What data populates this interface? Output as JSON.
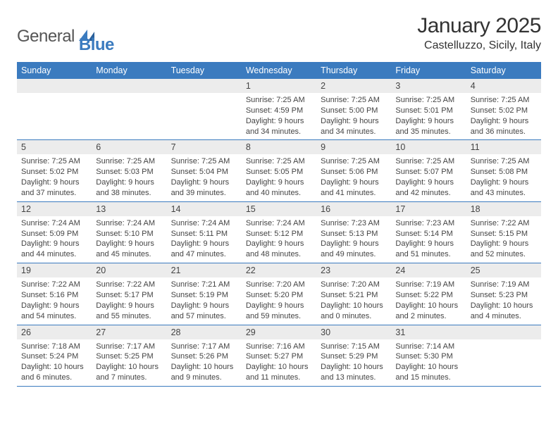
{
  "logo": {
    "text_a": "General",
    "text_b": "Blue"
  },
  "title": "January 2025",
  "location": "Castelluzzo, Sicily, Italy",
  "colors": {
    "brand_blue": "#3b7bbf",
    "header_bg": "#3b7bbf",
    "header_text": "#ffffff",
    "daynum_bg": "#ececec",
    "rule": "#3b7bbf",
    "body_text": "#444444"
  },
  "weekdays": [
    "Sunday",
    "Monday",
    "Tuesday",
    "Wednesday",
    "Thursday",
    "Friday",
    "Saturday"
  ],
  "weeks": [
    [
      {
        "n": "",
        "lines": []
      },
      {
        "n": "",
        "lines": []
      },
      {
        "n": "",
        "lines": []
      },
      {
        "n": "1",
        "lines": [
          "Sunrise: 7:25 AM",
          "Sunset: 4:59 PM",
          "Daylight: 9 hours and 34 minutes."
        ]
      },
      {
        "n": "2",
        "lines": [
          "Sunrise: 7:25 AM",
          "Sunset: 5:00 PM",
          "Daylight: 9 hours and 34 minutes."
        ]
      },
      {
        "n": "3",
        "lines": [
          "Sunrise: 7:25 AM",
          "Sunset: 5:01 PM",
          "Daylight: 9 hours and 35 minutes."
        ]
      },
      {
        "n": "4",
        "lines": [
          "Sunrise: 7:25 AM",
          "Sunset: 5:02 PM",
          "Daylight: 9 hours and 36 minutes."
        ]
      }
    ],
    [
      {
        "n": "5",
        "lines": [
          "Sunrise: 7:25 AM",
          "Sunset: 5:02 PM",
          "Daylight: 9 hours and 37 minutes."
        ]
      },
      {
        "n": "6",
        "lines": [
          "Sunrise: 7:25 AM",
          "Sunset: 5:03 PM",
          "Daylight: 9 hours and 38 minutes."
        ]
      },
      {
        "n": "7",
        "lines": [
          "Sunrise: 7:25 AM",
          "Sunset: 5:04 PM",
          "Daylight: 9 hours and 39 minutes."
        ]
      },
      {
        "n": "8",
        "lines": [
          "Sunrise: 7:25 AM",
          "Sunset: 5:05 PM",
          "Daylight: 9 hours and 40 minutes."
        ]
      },
      {
        "n": "9",
        "lines": [
          "Sunrise: 7:25 AM",
          "Sunset: 5:06 PM",
          "Daylight: 9 hours and 41 minutes."
        ]
      },
      {
        "n": "10",
        "lines": [
          "Sunrise: 7:25 AM",
          "Sunset: 5:07 PM",
          "Daylight: 9 hours and 42 minutes."
        ]
      },
      {
        "n": "11",
        "lines": [
          "Sunrise: 7:25 AM",
          "Sunset: 5:08 PM",
          "Daylight: 9 hours and 43 minutes."
        ]
      }
    ],
    [
      {
        "n": "12",
        "lines": [
          "Sunrise: 7:24 AM",
          "Sunset: 5:09 PM",
          "Daylight: 9 hours and 44 minutes."
        ]
      },
      {
        "n": "13",
        "lines": [
          "Sunrise: 7:24 AM",
          "Sunset: 5:10 PM",
          "Daylight: 9 hours and 45 minutes."
        ]
      },
      {
        "n": "14",
        "lines": [
          "Sunrise: 7:24 AM",
          "Sunset: 5:11 PM",
          "Daylight: 9 hours and 47 minutes."
        ]
      },
      {
        "n": "15",
        "lines": [
          "Sunrise: 7:24 AM",
          "Sunset: 5:12 PM",
          "Daylight: 9 hours and 48 minutes."
        ]
      },
      {
        "n": "16",
        "lines": [
          "Sunrise: 7:23 AM",
          "Sunset: 5:13 PM",
          "Daylight: 9 hours and 49 minutes."
        ]
      },
      {
        "n": "17",
        "lines": [
          "Sunrise: 7:23 AM",
          "Sunset: 5:14 PM",
          "Daylight: 9 hours and 51 minutes."
        ]
      },
      {
        "n": "18",
        "lines": [
          "Sunrise: 7:22 AM",
          "Sunset: 5:15 PM",
          "Daylight: 9 hours and 52 minutes."
        ]
      }
    ],
    [
      {
        "n": "19",
        "lines": [
          "Sunrise: 7:22 AM",
          "Sunset: 5:16 PM",
          "Daylight: 9 hours and 54 minutes."
        ]
      },
      {
        "n": "20",
        "lines": [
          "Sunrise: 7:22 AM",
          "Sunset: 5:17 PM",
          "Daylight: 9 hours and 55 minutes."
        ]
      },
      {
        "n": "21",
        "lines": [
          "Sunrise: 7:21 AM",
          "Sunset: 5:19 PM",
          "Daylight: 9 hours and 57 minutes."
        ]
      },
      {
        "n": "22",
        "lines": [
          "Sunrise: 7:20 AM",
          "Sunset: 5:20 PM",
          "Daylight: 9 hours and 59 minutes."
        ]
      },
      {
        "n": "23",
        "lines": [
          "Sunrise: 7:20 AM",
          "Sunset: 5:21 PM",
          "Daylight: 10 hours and 0 minutes."
        ]
      },
      {
        "n": "24",
        "lines": [
          "Sunrise: 7:19 AM",
          "Sunset: 5:22 PM",
          "Daylight: 10 hours and 2 minutes."
        ]
      },
      {
        "n": "25",
        "lines": [
          "Sunrise: 7:19 AM",
          "Sunset: 5:23 PM",
          "Daylight: 10 hours and 4 minutes."
        ]
      }
    ],
    [
      {
        "n": "26",
        "lines": [
          "Sunrise: 7:18 AM",
          "Sunset: 5:24 PM",
          "Daylight: 10 hours and 6 minutes."
        ]
      },
      {
        "n": "27",
        "lines": [
          "Sunrise: 7:17 AM",
          "Sunset: 5:25 PM",
          "Daylight: 10 hours and 7 minutes."
        ]
      },
      {
        "n": "28",
        "lines": [
          "Sunrise: 7:17 AM",
          "Sunset: 5:26 PM",
          "Daylight: 10 hours and 9 minutes."
        ]
      },
      {
        "n": "29",
        "lines": [
          "Sunrise: 7:16 AM",
          "Sunset: 5:27 PM",
          "Daylight: 10 hours and 11 minutes."
        ]
      },
      {
        "n": "30",
        "lines": [
          "Sunrise: 7:15 AM",
          "Sunset: 5:29 PM",
          "Daylight: 10 hours and 13 minutes."
        ]
      },
      {
        "n": "31",
        "lines": [
          "Sunrise: 7:14 AM",
          "Sunset: 5:30 PM",
          "Daylight: 10 hours and 15 minutes."
        ]
      },
      {
        "n": "",
        "lines": []
      }
    ]
  ]
}
